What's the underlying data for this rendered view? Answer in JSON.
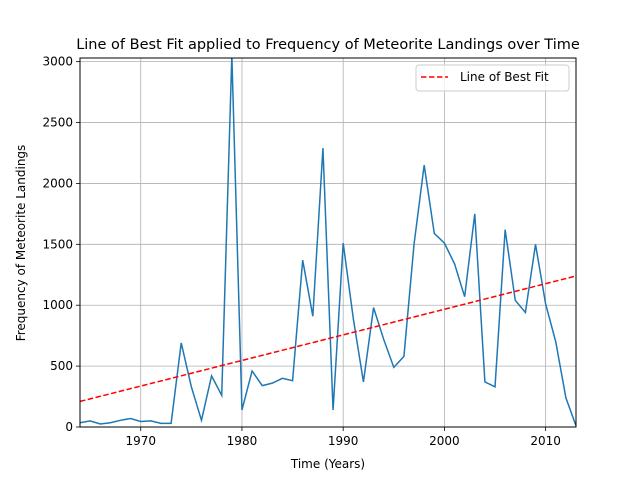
{
  "chart_data": {
    "type": "line",
    "title": "Line of Best Fit applied to Frequency of Meteorite Landings over Time",
    "xlabel": "Time (Years)",
    "ylabel": "Frequency of Meteorite Landings",
    "xlim": [
      1964,
      2013
    ],
    "ylim": [
      0,
      3030
    ],
    "xticks": [
      1970,
      1980,
      1990,
      2000,
      2010
    ],
    "yticks": [
      0,
      500,
      1000,
      1500,
      2000,
      2500,
      3000
    ],
    "grid": true,
    "legend_position": "top-right",
    "series": [
      {
        "kind": "data",
        "color": "#1f77b4",
        "x": [
          1964,
          1965,
          1966,
          1967,
          1968,
          1969,
          1970,
          1971,
          1972,
          1973,
          1974,
          1975,
          1976,
          1977,
          1978,
          1979,
          1980,
          1981,
          1982,
          1983,
          1984,
          1985,
          1986,
          1987,
          1988,
          1989,
          1990,
          1991,
          1992,
          1993,
          1994,
          1995,
          1996,
          1997,
          1998,
          1999,
          2000,
          2001,
          2002,
          2003,
          2004,
          2005,
          2006,
          2007,
          2008,
          2009,
          2010,
          2011,
          2012,
          2013
        ],
        "values": [
          35,
          50,
          25,
          35,
          55,
          70,
          45,
          50,
          30,
          30,
          690,
          330,
          55,
          420,
          260,
          3050,
          140,
          460,
          340,
          360,
          400,
          380,
          1370,
          910,
          2290,
          140,
          1510,
          890,
          370,
          980,
          720,
          490,
          580,
          1500,
          2150,
          1590,
          1510,
          1340,
          1070,
          1750,
          370,
          330,
          1620,
          1040,
          940,
          1500,
          1010,
          700,
          240,
          10
        ]
      },
      {
        "kind": "fit",
        "name": "Line of Best Fit",
        "color": "#ff0000",
        "dashed": true,
        "x": [
          1964,
          2013
        ],
        "values": [
          210,
          1240
        ]
      }
    ]
  }
}
